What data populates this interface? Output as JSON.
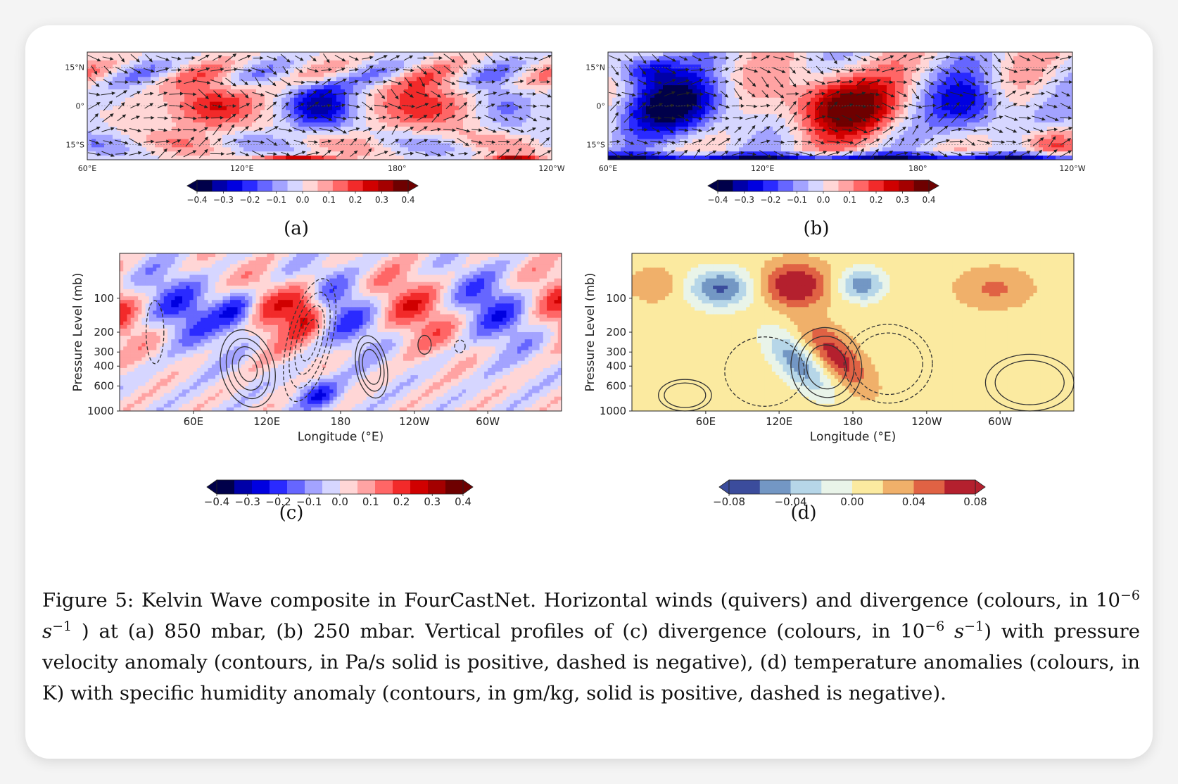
{
  "figure": {
    "caption": {
      "prefix": "Figure 5:",
      "p1": " Kelvin Wave composite in FourCastNet. Horizontal winds (quivers) and divergence (colours, in 10",
      "exp1": "−6",
      "unit1": " s",
      "unitexp1": "−1",
      "p2": " ) at (a) 850 mbar, (b) 250 mbar. Vertical profiles of (c) divergence (colours, in 10",
      "exp2": "−6",
      "unit2": " s",
      "unitexp2": "−1",
      "p3": ") with pressure velocity anomaly (contours, in Pa/s solid is positive, dashed is negative), (d) temperature anomalies (colours, in K) with specific humidity anomaly (contours, in gm/kg, solid is positive, dashed is negative)."
    }
  },
  "chart_data": [
    {
      "id": "a",
      "type": "heatmap",
      "subtitle": "(a)",
      "overlay": "quiver",
      "xticks": [
        "60°E",
        "120°E",
        "180°",
        "120°W"
      ],
      "yticks": [
        "15°N",
        "0°",
        "15°S"
      ],
      "colorbar_ticks": [
        "−0.4",
        "−0.3",
        "−0.2",
        "−0.1",
        "0.0",
        "0.1",
        "0.2",
        "0.3",
        "0.4"
      ],
      "colorbar_range": [
        -0.4,
        0.4
      ],
      "cmap": "seismic"
    },
    {
      "id": "b",
      "type": "heatmap",
      "subtitle": "(b)",
      "overlay": "quiver",
      "xticks": [
        "60°E",
        "120°E",
        "180°",
        "120°W"
      ],
      "yticks": [
        "15°N",
        "0°",
        "15°S"
      ],
      "colorbar_ticks": [
        "−0.4",
        "−0.3",
        "−0.2",
        "−0.1",
        "0.0",
        "0.1",
        "0.2",
        "0.3",
        "0.4"
      ],
      "colorbar_range": [
        -0.4,
        0.4
      ],
      "cmap": "seismic"
    },
    {
      "id": "c",
      "type": "heatmap",
      "subtitle": "(c)",
      "overlay": "contour",
      "xlabel": "Longitude (°E)",
      "ylabel": "Pressure Level (mb)",
      "xticks": [
        "60E",
        "120E",
        "180",
        "120W",
        "60W"
      ],
      "yticks": [
        "100",
        "200",
        "300",
        "400",
        "600",
        "1000"
      ],
      "yscale": "log",
      "colorbar_ticks": [
        "−0.4",
        "−0.3",
        "−0.2",
        "−0.1",
        "0.0",
        "0.1",
        "0.2",
        "0.3",
        "0.4"
      ],
      "colorbar_range": [
        -0.4,
        0.4
      ],
      "cmap": "seismic"
    },
    {
      "id": "d",
      "type": "heatmap",
      "subtitle": "(d)",
      "overlay": "contour",
      "xlabel": "Longitude (°E)",
      "ylabel": "Pressure Level (mb)",
      "xticks": [
        "60E",
        "120E",
        "180",
        "120W",
        "60W"
      ],
      "yticks": [
        "100",
        "200",
        "300",
        "400",
        "600",
        "1000"
      ],
      "yscale": "log",
      "colorbar_ticks": [
        "−0.08",
        "−0.04",
        "0.00",
        "0.04",
        "0.08"
      ],
      "colorbar_range": [
        -0.08,
        0.08
      ],
      "cmap": "RdYlBu_r"
    }
  ]
}
